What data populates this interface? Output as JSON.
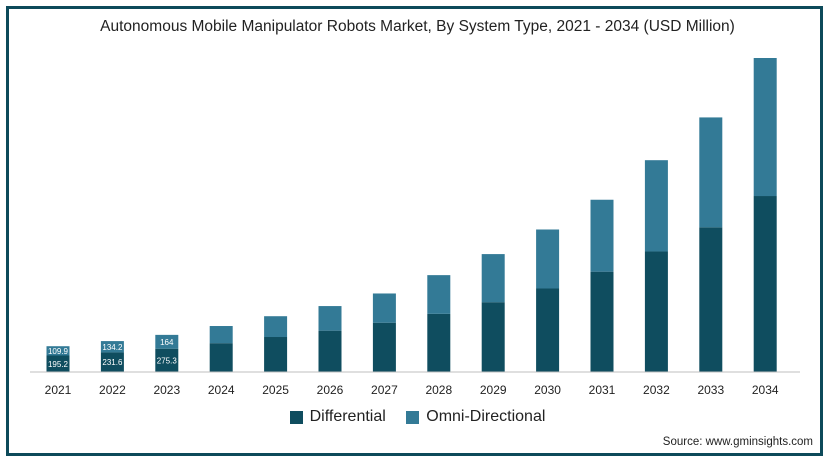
{
  "chart_data": {
    "type": "bar",
    "stacked": true,
    "title": "Autonomous Mobile Manipulator Robots Market, By System Type, 2021 - 2034 (USD Million)",
    "categories": [
      "2021",
      "2022",
      "2023",
      "2024",
      "2025",
      "2026",
      "2027",
      "2028",
      "2029",
      "2030",
      "2031",
      "2032",
      "2033",
      "2034"
    ],
    "series": [
      {
        "name": "Differential",
        "color": "#0f4d5f",
        "values": [
          195.2,
          231.6,
          275.3,
          341,
          414,
          489,
          583,
          688,
          826,
          988,
          1187,
          1426,
          1712,
          2082
        ]
      },
      {
        "name": "Omni-Directional",
        "color": "#337a96",
        "values": [
          109.9,
          134.2,
          164,
          203,
          246,
          291,
          346,
          458,
          569,
          698,
          851,
          1080,
          1300,
          1633
        ]
      }
    ],
    "data_labels": {
      "Differential": [
        "195.2",
        "231.6",
        "275.3"
      ],
      "Omni-Directional": [
        "109.9",
        "134.2",
        "164"
      ]
    },
    "ylim": [
      0,
      3715
    ],
    "grid": false,
    "legend_position": "bottom"
  },
  "legend_labels": [
    "Differential",
    "Omni-Directional"
  ],
  "source": "Source: www.gminsights.com"
}
